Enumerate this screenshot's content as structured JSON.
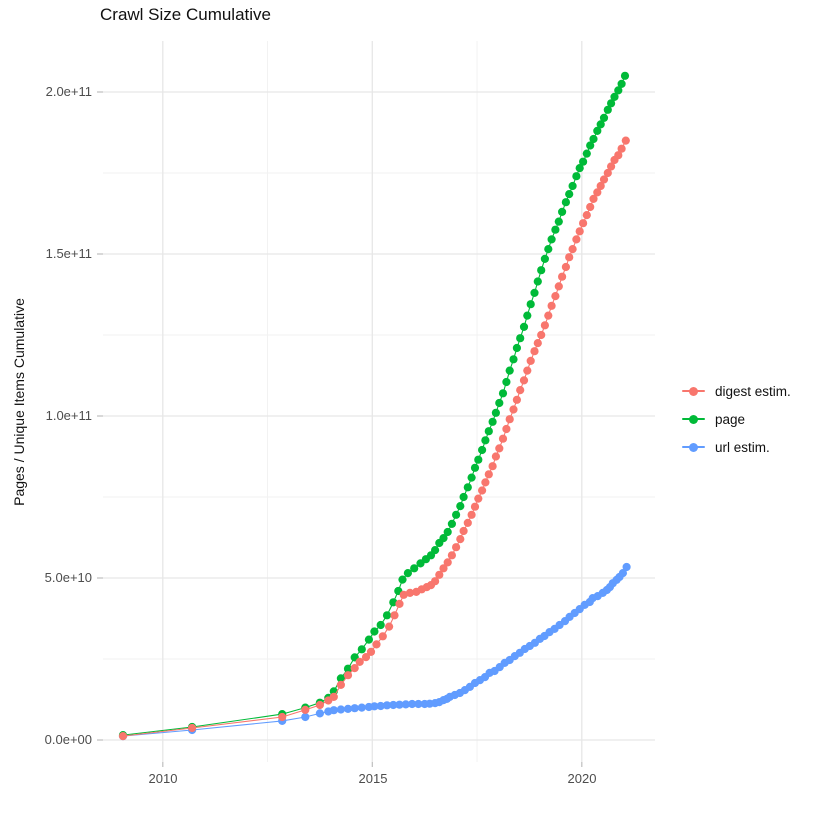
{
  "title": "Crawl Size Cumulative",
  "y_axis": {
    "title": "Pages / Unique Items Cumulative"
  },
  "legend": {
    "position": "right",
    "items": [
      {
        "label": "digest estim.",
        "color": "#F8766D"
      },
      {
        "label": "page",
        "color": "#00BA38"
      },
      {
        "label": "url estim.",
        "color": "#619CFF"
      }
    ]
  },
  "chart_data": {
    "type": "scatter",
    "title": "Crawl Size Cumulative",
    "xlabel": "",
    "ylabel": "Pages / Unique Items Cumulative",
    "x_domain": [
      2008.5,
      2021.75
    ],
    "y_domain": [
      0,
      217000000000.0
    ],
    "x_ticks": [
      2010,
      2015,
      2020
    ],
    "x_minor_ticks": [
      2012.5,
      2017.5
    ],
    "y_ticks": [
      0,
      50000000000.0,
      100000000000.0,
      150000000000.0,
      200000000000.0
    ],
    "y_minor_ticks": [
      25000000000.0,
      75000000000.0,
      125000000000.0,
      175000000000.0
    ],
    "x_tick_labels": [
      "2010",
      "2015",
      "2020"
    ],
    "y_tick_labels": [
      "0.0e+00",
      "5.0e+10",
      "1.0e+11",
      "1.5e+11",
      "2.0e+11"
    ],
    "grid": true,
    "major_grid_color": "#E7E7E7",
    "minor_grid_color": "#F1F1F1",
    "axis_tick_color": "#BEBEBE",
    "legend_position": "right",
    "y_value_multiplier": 1000000000.0,
    "y_value_unit": "pages (values below are billions)",
    "series": [
      {
        "name": "digest estim.",
        "color": "#F8766D",
        "points": [
          [
            2009.05,
            1.2
          ],
          [
            2010.7,
            3.7
          ],
          [
            2012.85,
            7.1
          ],
          [
            2013.4,
            9.3
          ],
          [
            2013.75,
            10.8
          ],
          [
            2013.95,
            12.2
          ],
          [
            2014.08,
            13.3
          ],
          [
            2014.25,
            17
          ],
          [
            2014.42,
            20
          ],
          [
            2014.58,
            22.2
          ],
          [
            2014.7,
            24.1
          ],
          [
            2014.85,
            25.6
          ],
          [
            2014.97,
            27.2
          ],
          [
            2015.1,
            29.5
          ],
          [
            2015.25,
            32
          ],
          [
            2015.4,
            35
          ],
          [
            2015.53,
            38.5
          ],
          [
            2015.65,
            42
          ],
          [
            2015.75,
            44.8
          ],
          [
            2015.9,
            45.4
          ],
          [
            2016.05,
            45.7
          ],
          [
            2016.18,
            46.5
          ],
          [
            2016.3,
            47.2
          ],
          [
            2016.4,
            47.8
          ],
          [
            2016.5,
            49
          ],
          [
            2016.6,
            51
          ],
          [
            2016.7,
            53
          ],
          [
            2016.8,
            54.8
          ],
          [
            2016.9,
            57
          ],
          [
            2017.0,
            59.5
          ],
          [
            2017.1,
            62
          ],
          [
            2017.18,
            64.5
          ],
          [
            2017.28,
            67
          ],
          [
            2017.37,
            69.5
          ],
          [
            2017.45,
            72
          ],
          [
            2017.53,
            74.5
          ],
          [
            2017.62,
            77
          ],
          [
            2017.7,
            79.5
          ],
          [
            2017.78,
            82
          ],
          [
            2017.87,
            84.5
          ],
          [
            2017.95,
            87.5
          ],
          [
            2018.03,
            90
          ],
          [
            2018.12,
            93
          ],
          [
            2018.2,
            96
          ],
          [
            2018.28,
            99
          ],
          [
            2018.37,
            102
          ],
          [
            2018.45,
            105
          ],
          [
            2018.53,
            108
          ],
          [
            2018.62,
            111
          ],
          [
            2018.7,
            114
          ],
          [
            2018.78,
            117
          ],
          [
            2018.87,
            120
          ],
          [
            2018.95,
            122.5
          ],
          [
            2019.03,
            125
          ],
          [
            2019.12,
            128
          ],
          [
            2019.2,
            131
          ],
          [
            2019.28,
            134
          ],
          [
            2019.37,
            137
          ],
          [
            2019.45,
            140
          ],
          [
            2019.53,
            143
          ],
          [
            2019.62,
            146
          ],
          [
            2019.7,
            149
          ],
          [
            2019.78,
            151.5
          ],
          [
            2019.87,
            154.5
          ],
          [
            2019.95,
            157
          ],
          [
            2020.03,
            159.5
          ],
          [
            2020.12,
            162
          ],
          [
            2020.2,
            164.5
          ],
          [
            2020.28,
            167
          ],
          [
            2020.37,
            169
          ],
          [
            2020.45,
            171
          ],
          [
            2020.53,
            173
          ],
          [
            2020.62,
            175
          ],
          [
            2020.7,
            177
          ],
          [
            2020.78,
            179
          ],
          [
            2020.87,
            180.5
          ],
          [
            2020.95,
            182.5
          ],
          [
            2021.05,
            185
          ]
        ]
      },
      {
        "name": "page",
        "color": "#00BA38",
        "points": [
          [
            2009.05,
            1.5
          ],
          [
            2010.7,
            4
          ],
          [
            2012.85,
            8
          ],
          [
            2013.4,
            10
          ],
          [
            2013.75,
            11.5
          ],
          [
            2013.95,
            13
          ],
          [
            2014.08,
            15
          ],
          [
            2014.25,
            19
          ],
          [
            2014.42,
            22
          ],
          [
            2014.58,
            25.5
          ],
          [
            2014.75,
            28
          ],
          [
            2014.92,
            31
          ],
          [
            2015.05,
            33.5
          ],
          [
            2015.2,
            35.5
          ],
          [
            2015.35,
            38.5
          ],
          [
            2015.5,
            42.5
          ],
          [
            2015.62,
            46
          ],
          [
            2015.72,
            49.5
          ],
          [
            2015.85,
            51.5
          ],
          [
            2016.0,
            53
          ],
          [
            2016.15,
            54.5
          ],
          [
            2016.28,
            55.8
          ],
          [
            2016.4,
            57
          ],
          [
            2016.5,
            58.6
          ],
          [
            2016.6,
            60.8
          ],
          [
            2016.7,
            62.3
          ],
          [
            2016.8,
            64.2
          ],
          [
            2016.9,
            66.7
          ],
          [
            2017.0,
            69.5
          ],
          [
            2017.1,
            72.2
          ],
          [
            2017.18,
            75
          ],
          [
            2017.28,
            78
          ],
          [
            2017.37,
            81
          ],
          [
            2017.45,
            84
          ],
          [
            2017.53,
            86.5
          ],
          [
            2017.62,
            89.5
          ],
          [
            2017.7,
            92.5
          ],
          [
            2017.78,
            95.3
          ],
          [
            2017.87,
            98.2
          ],
          [
            2017.95,
            101
          ],
          [
            2018.03,
            104
          ],
          [
            2018.12,
            107
          ],
          [
            2018.2,
            110.5
          ],
          [
            2018.28,
            114
          ],
          [
            2018.37,
            117.5
          ],
          [
            2018.45,
            121
          ],
          [
            2018.53,
            124
          ],
          [
            2018.62,
            127.5
          ],
          [
            2018.7,
            131
          ],
          [
            2018.78,
            134.5
          ],
          [
            2018.87,
            138
          ],
          [
            2018.95,
            141.5
          ],
          [
            2019.03,
            145
          ],
          [
            2019.12,
            148.5
          ],
          [
            2019.2,
            151.5
          ],
          [
            2019.28,
            154.5
          ],
          [
            2019.37,
            157.5
          ],
          [
            2019.45,
            160
          ],
          [
            2019.53,
            163
          ],
          [
            2019.62,
            166
          ],
          [
            2019.7,
            168.5
          ],
          [
            2019.78,
            171
          ],
          [
            2019.87,
            174
          ],
          [
            2019.95,
            176.5
          ],
          [
            2020.03,
            178.5
          ],
          [
            2020.12,
            181
          ],
          [
            2020.2,
            183.5
          ],
          [
            2020.28,
            185.5
          ],
          [
            2020.37,
            188
          ],
          [
            2020.45,
            190
          ],
          [
            2020.53,
            192
          ],
          [
            2020.62,
            194.5
          ],
          [
            2020.7,
            196.5
          ],
          [
            2020.78,
            198.5
          ],
          [
            2020.87,
            200.5
          ],
          [
            2020.95,
            202.5
          ],
          [
            2021.03,
            205
          ]
        ]
      },
      {
        "name": "url estim.",
        "color": "#619CFF",
        "points": [
          [
            2009.05,
            1.2
          ],
          [
            2010.7,
            3.1
          ],
          [
            2012.85,
            5.9
          ],
          [
            2013.4,
            7.1
          ],
          [
            2013.75,
            8.2
          ],
          [
            2013.95,
            8.8
          ],
          [
            2014.08,
            9.2
          ],
          [
            2014.25,
            9.4
          ],
          [
            2014.42,
            9.6
          ],
          [
            2014.58,
            9.8
          ],
          [
            2014.75,
            10
          ],
          [
            2014.92,
            10.2
          ],
          [
            2015.05,
            10.4
          ],
          [
            2015.2,
            10.5
          ],
          [
            2015.35,
            10.7
          ],
          [
            2015.5,
            10.8
          ],
          [
            2015.65,
            10.9
          ],
          [
            2015.8,
            11
          ],
          [
            2015.95,
            11.1
          ],
          [
            2016.1,
            11.1
          ],
          [
            2016.25,
            11.1
          ],
          [
            2016.37,
            11.2
          ],
          [
            2016.5,
            11.4
          ],
          [
            2016.6,
            11.7
          ],
          [
            2016.7,
            12.3
          ],
          [
            2016.78,
            12.7
          ],
          [
            2016.85,
            13.3
          ],
          [
            2016.97,
            13.9
          ],
          [
            2017.09,
            14.5
          ],
          [
            2017.21,
            15.4
          ],
          [
            2017.33,
            16.4
          ],
          [
            2017.45,
            17.6
          ],
          [
            2017.57,
            18.5
          ],
          [
            2017.69,
            19.4
          ],
          [
            2017.8,
            20.7
          ],
          [
            2017.92,
            21.3
          ],
          [
            2018.04,
            22.5
          ],
          [
            2018.16,
            23.8
          ],
          [
            2018.28,
            24.7
          ],
          [
            2018.4,
            25.9
          ],
          [
            2018.52,
            26.9
          ],
          [
            2018.64,
            28.1
          ],
          [
            2018.76,
            29
          ],
          [
            2018.88,
            30
          ],
          [
            2019.0,
            31.2
          ],
          [
            2019.11,
            32.1
          ],
          [
            2019.23,
            33.3
          ],
          [
            2019.35,
            34.3
          ],
          [
            2019.47,
            35.5
          ],
          [
            2019.6,
            36.7
          ],
          [
            2019.71,
            38
          ],
          [
            2019.83,
            39.2
          ],
          [
            2019.95,
            40.4
          ],
          [
            2020.07,
            41.7
          ],
          [
            2020.19,
            42.6
          ],
          [
            2020.26,
            43.8
          ],
          [
            2020.38,
            44.4
          ],
          [
            2020.5,
            45.4
          ],
          [
            2020.6,
            46.3
          ],
          [
            2020.67,
            47.2
          ],
          [
            2020.74,
            48.4
          ],
          [
            2020.83,
            49.4
          ],
          [
            2020.9,
            50.3
          ],
          [
            2020.98,
            51.5
          ],
          [
            2021.07,
            53.4
          ]
        ]
      }
    ]
  }
}
